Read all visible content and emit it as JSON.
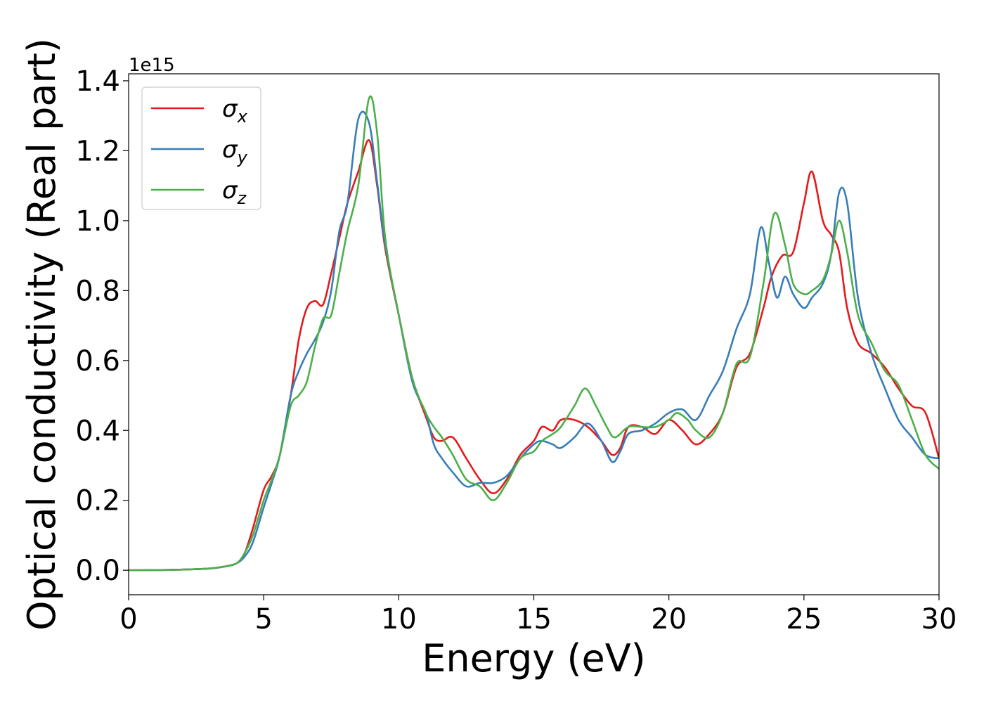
{
  "chart_data": {
    "type": "line",
    "xlabel": "Energy (eV)",
    "ylabel": "Optical conductivity (Real part)",
    "y_offset_label": "1e15",
    "xlim": [
      0,
      30
    ],
    "ylim": [
      -0.07,
      1.42
    ],
    "xticks": [
      0,
      5,
      10,
      15,
      20,
      25,
      30
    ],
    "xtick_labels": [
      "0",
      "5",
      "10",
      "15",
      "20",
      "25",
      "30"
    ],
    "yticks": [
      0.0,
      0.2,
      0.4,
      0.6,
      0.8,
      1.0,
      1.2,
      1.4
    ],
    "ytick_labels": [
      "0.0",
      "0.2",
      "0.4",
      "0.6",
      "0.8",
      "1.0",
      "1.2",
      "1.4"
    ],
    "grid": false,
    "legend_position": "top-left",
    "series": [
      {
        "name": "σx",
        "symbol": "σ",
        "subscript": "x",
        "color": "#e41a1c",
        "x": [
          0,
          1,
          2,
          3,
          3.5,
          4,
          4.3,
          4.6,
          5,
          5.3,
          5.6,
          6,
          6.3,
          6.6,
          6.9,
          7.2,
          7.5,
          7.8,
          8.1,
          8.5,
          8.9,
          9.2,
          9.5,
          10,
          10.5,
          11,
          11.3,
          11.6,
          12,
          12.5,
          13,
          13.5,
          14,
          14.5,
          15,
          15.3,
          15.7,
          16,
          16.5,
          17,
          17.5,
          17.9,
          18.2,
          18.5,
          19,
          19.5,
          20,
          20.5,
          21,
          21.5,
          22,
          22.5,
          23,
          23.5,
          23.8,
          24.2,
          24.6,
          25,
          25.3,
          25.7,
          26,
          26.3,
          26.6,
          27,
          27.5,
          28,
          28.5,
          29,
          29.5,
          30
        ],
        "y": [
          0,
          0.0005,
          0.002,
          0.005,
          0.01,
          0.02,
          0.05,
          0.12,
          0.23,
          0.27,
          0.33,
          0.5,
          0.66,
          0.75,
          0.77,
          0.76,
          0.85,
          0.95,
          1.05,
          1.14,
          1.23,
          1.1,
          0.92,
          0.73,
          0.55,
          0.44,
          0.38,
          0.37,
          0.38,
          0.32,
          0.26,
          0.22,
          0.26,
          0.33,
          0.37,
          0.41,
          0.4,
          0.43,
          0.43,
          0.41,
          0.37,
          0.33,
          0.35,
          0.41,
          0.41,
          0.39,
          0.43,
          0.4,
          0.36,
          0.39,
          0.45,
          0.58,
          0.62,
          0.75,
          0.84,
          0.9,
          0.91,
          1.05,
          1.14,
          1.0,
          0.96,
          0.91,
          0.75,
          0.65,
          0.62,
          0.58,
          0.52,
          0.47,
          0.45,
          0.32
        ]
      },
      {
        "name": "σy",
        "symbol": "σ",
        "subscript": "y",
        "color": "#377eb8",
        "x": [
          0,
          1,
          2,
          3,
          3.5,
          4,
          4.3,
          4.6,
          5,
          5.3,
          5.6,
          6,
          6.3,
          6.6,
          6.9,
          7.2,
          7.5,
          7.8,
          8.1,
          8.5,
          8.9,
          9.2,
          9.5,
          10,
          10.5,
          11,
          11.3,
          11.6,
          12,
          12.5,
          13,
          13.5,
          14,
          14.5,
          15,
          15.3,
          15.7,
          16,
          16.5,
          17,
          17.5,
          17.9,
          18.2,
          18.5,
          19,
          19.5,
          20,
          20.5,
          21,
          21.5,
          22,
          22.5,
          23,
          23.4,
          23.7,
          24,
          24.3,
          24.6,
          25,
          25.3,
          25.7,
          26,
          26.3,
          26.6,
          27,
          27.5,
          28,
          28.5,
          29,
          29.5,
          30
        ],
        "y": [
          0,
          0.0005,
          0.002,
          0.005,
          0.01,
          0.02,
          0.04,
          0.08,
          0.18,
          0.25,
          0.33,
          0.5,
          0.57,
          0.62,
          0.66,
          0.71,
          0.8,
          0.97,
          1.05,
          1.29,
          1.28,
          1.11,
          0.93,
          0.73,
          0.54,
          0.45,
          0.36,
          0.32,
          0.28,
          0.24,
          0.25,
          0.25,
          0.27,
          0.32,
          0.36,
          0.37,
          0.36,
          0.35,
          0.38,
          0.42,
          0.37,
          0.31,
          0.34,
          0.39,
          0.4,
          0.42,
          0.45,
          0.46,
          0.43,
          0.5,
          0.57,
          0.69,
          0.79,
          0.98,
          0.88,
          0.78,
          0.84,
          0.79,
          0.75,
          0.78,
          0.82,
          0.9,
          1.08,
          1.05,
          0.78,
          0.62,
          0.52,
          0.43,
          0.38,
          0.33,
          0.32
        ]
      },
      {
        "name": "σz",
        "symbol": "σ",
        "subscript": "z",
        "color": "#4daf4a",
        "x": [
          0,
          1,
          2,
          3,
          3.5,
          4,
          4.3,
          4.6,
          5,
          5.3,
          5.6,
          6,
          6.3,
          6.6,
          6.9,
          7.2,
          7.5,
          7.8,
          8.1,
          8.5,
          8.9,
          9.2,
          9.5,
          10,
          10.5,
          11,
          11.3,
          11.6,
          12,
          12.5,
          13,
          13.5,
          14,
          14.5,
          15,
          15.3,
          15.7,
          16,
          16.5,
          16.9,
          17.3,
          17.7,
          18,
          18.5,
          19,
          19.5,
          20,
          20.3,
          20.7,
          21,
          21.5,
          22,
          22.5,
          23,
          23.5,
          23.9,
          24.3,
          24.6,
          25,
          25.3,
          25.7,
          26,
          26.3,
          26.6,
          27,
          27.5,
          28,
          28.5,
          29,
          29.5,
          30
        ],
        "y": [
          0,
          0.0005,
          0.002,
          0.005,
          0.01,
          0.02,
          0.05,
          0.1,
          0.2,
          0.26,
          0.33,
          0.47,
          0.5,
          0.54,
          0.64,
          0.72,
          0.73,
          0.85,
          0.97,
          1.1,
          1.35,
          1.25,
          0.95,
          0.73,
          0.55,
          0.45,
          0.41,
          0.38,
          0.33,
          0.26,
          0.24,
          0.2,
          0.25,
          0.32,
          0.34,
          0.37,
          0.39,
          0.41,
          0.47,
          0.52,
          0.47,
          0.41,
          0.38,
          0.41,
          0.41,
          0.41,
          0.43,
          0.45,
          0.43,
          0.4,
          0.38,
          0.45,
          0.59,
          0.61,
          0.82,
          1.02,
          0.93,
          0.82,
          0.79,
          0.8,
          0.83,
          0.9,
          1.0,
          0.91,
          0.73,
          0.65,
          0.57,
          0.53,
          0.43,
          0.33,
          0.29
        ]
      }
    ]
  }
}
